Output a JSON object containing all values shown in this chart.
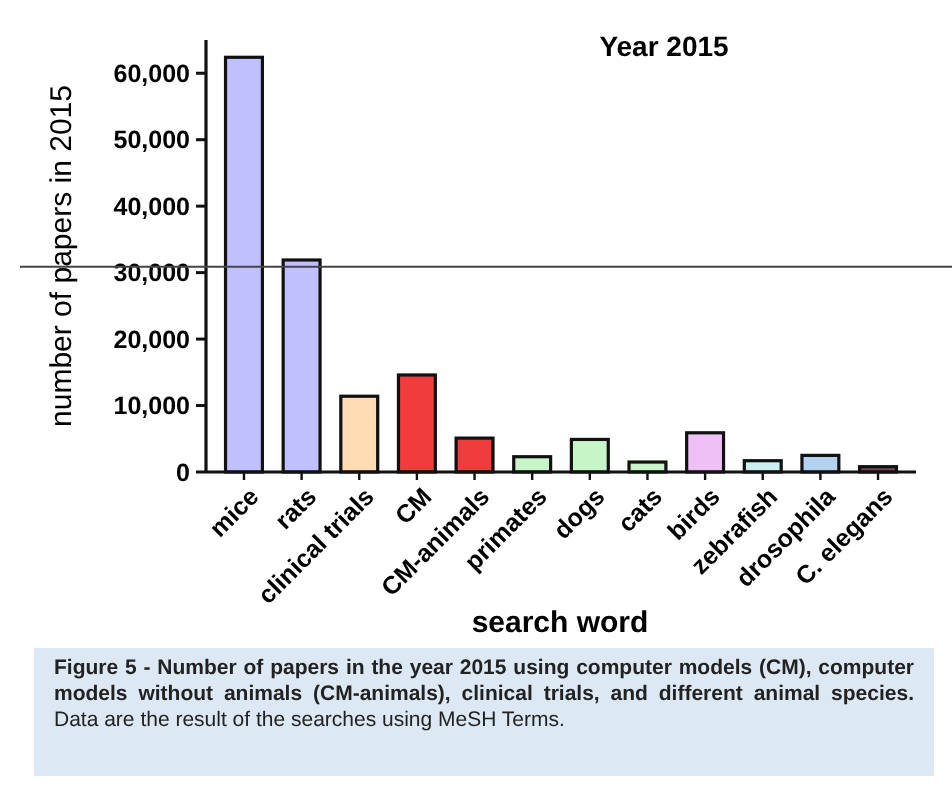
{
  "chart_data": {
    "type": "bar",
    "title": "Year 2015",
    "xlabel": "search word",
    "ylabel": "number of papers in 2015",
    "categories": [
      "mice",
      "rats",
      "clinical trials",
      "CM",
      "CM-animals",
      "primates",
      "dogs",
      "cats",
      "birds",
      "zebrafish",
      "drosophila",
      "C. elegans"
    ],
    "values": [
      62400,
      31900,
      11400,
      14600,
      5100,
      2300,
      4900,
      1500,
      5900,
      1700,
      2500,
      800
    ],
    "colors": [
      "#c0c0ff",
      "#c0c0ff",
      "#ffdcb4",
      "#f03c3c",
      "#f03c3c",
      "#c8f5c8",
      "#c8f5c8",
      "#c8f5c8",
      "#eec0f5",
      "#c8f0f0",
      "#b4d2f0",
      "#7a4a5a"
    ],
    "ylim": [
      0,
      65000
    ],
    "yticks": [
      0,
      {
        "value": 10000,
        "label": "10,000"
      },
      {
        "value": 20000,
        "label": "20,000"
      },
      {
        "value": 30000,
        "label": "30,000"
      },
      {
        "value": 40000,
        "label": "40,000"
      },
      {
        "value": 50000,
        "label": "50,000"
      },
      {
        "value": 60000,
        "label": "60,000"
      }
    ],
    "ref_lines": [
      {
        "axis": "y",
        "value": 30900,
        "color": "#444444"
      }
    ],
    "annotations": [
      "Figure 5 - Number of papers in the year 2015 using computer models (CM), computer models without animals (CM-animals), clinical trials, and different animal species.",
      "Data are the result of the searches using MeSH Terms."
    ]
  }
}
